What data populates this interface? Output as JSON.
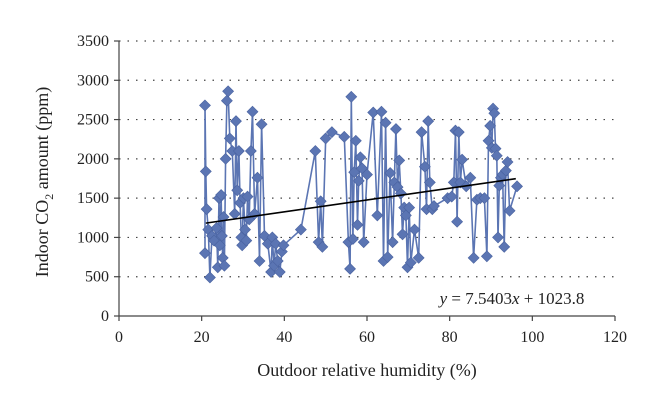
{
  "chart_data": {
    "type": "scatter",
    "title": "",
    "xlabel": "Outdoor relative humidity (%)",
    "ylabel_parts": [
      "Indoor CO",
      "2",
      " amount (ppm)"
    ],
    "xlim": [
      0,
      120
    ],
    "ylim": [
      0,
      3500
    ],
    "x_ticks": [
      0,
      20,
      40,
      60,
      80,
      100,
      120
    ],
    "y_ticks": [
      0,
      500,
      1000,
      1500,
      2000,
      2500,
      3000,
      3500
    ],
    "grid": "horizontal dotted",
    "series": [
      {
        "color": "#5b75b3",
        "marker": "diamond",
        "connected": true,
        "points": [
          [
            20.8,
            800
          ],
          [
            20.8,
            2680
          ],
          [
            21.0,
            1840
          ],
          [
            21.2,
            1360
          ],
          [
            21.6,
            1100
          ],
          [
            22.0,
            490
          ],
          [
            22.5,
            1020
          ],
          [
            23.0,
            960
          ],
          [
            23.6,
            1120
          ],
          [
            23.9,
            620
          ],
          [
            24.2,
            1500
          ],
          [
            24.4,
            900
          ],
          [
            24.7,
            1540
          ],
          [
            24.9,
            1020
          ],
          [
            25.1,
            740
          ],
          [
            25.3,
            1260
          ],
          [
            25.5,
            640
          ],
          [
            25.8,
            2000
          ],
          [
            26.1,
            2740
          ],
          [
            26.4,
            2860
          ],
          [
            26.8,
            2260
          ],
          [
            27.4,
            2100
          ],
          [
            28.0,
            1300
          ],
          [
            28.3,
            2480
          ],
          [
            28.6,
            1600
          ],
          [
            29.0,
            2100
          ],
          [
            29.3,
            1440
          ],
          [
            29.6,
            1000
          ],
          [
            29.8,
            900
          ],
          [
            30.1,
            1500
          ],
          [
            30.5,
            1100
          ],
          [
            30.8,
            960
          ],
          [
            31.1,
            1520
          ],
          [
            31.5,
            1230
          ],
          [
            31.9,
            2100
          ],
          [
            32.3,
            2600
          ],
          [
            32.8,
            1300
          ],
          [
            33.5,
            1760
          ],
          [
            34.0,
            700
          ],
          [
            34.5,
            2440
          ],
          [
            35.2,
            1020
          ],
          [
            36.0,
            920
          ],
          [
            36.8,
            560
          ],
          [
            37.1,
            1000
          ],
          [
            37.5,
            640
          ],
          [
            37.9,
            920
          ],
          [
            38.4,
            700
          ],
          [
            38.9,
            560
          ],
          [
            39.4,
            820
          ],
          [
            39.8,
            900
          ],
          [
            44.0,
            1100
          ],
          [
            47.5,
            2100
          ],
          [
            48.3,
            940
          ],
          [
            48.8,
            1460
          ],
          [
            49.2,
            880
          ],
          [
            50.0,
            2260
          ],
          [
            51.5,
            2340
          ],
          [
            54.5,
            2280
          ],
          [
            55.5,
            940
          ],
          [
            55.9,
            600
          ],
          [
            56.2,
            2790
          ],
          [
            56.6,
            980
          ],
          [
            56.9,
            1830
          ],
          [
            57.3,
            2230
          ],
          [
            57.7,
            1160
          ],
          [
            58.0,
            1720
          ],
          [
            58.4,
            2020
          ],
          [
            58.8,
            1880
          ],
          [
            59.2,
            940
          ],
          [
            60.0,
            1800
          ],
          [
            61.5,
            2590
          ],
          [
            62.5,
            1280
          ],
          [
            63.5,
            2600
          ],
          [
            64.0,
            700
          ],
          [
            64.5,
            2460
          ],
          [
            65.0,
            750
          ],
          [
            65.6,
            1820
          ],
          [
            66.2,
            940
          ],
          [
            66.6,
            1700
          ],
          [
            67.0,
            2380
          ],
          [
            67.4,
            1640
          ],
          [
            67.8,
            1980
          ],
          [
            68.2,
            1560
          ],
          [
            68.6,
            1040
          ],
          [
            69.0,
            1380
          ],
          [
            69.4,
            1280
          ],
          [
            69.8,
            620
          ],
          [
            70.2,
            1380
          ],
          [
            70.6,
            680
          ],
          [
            71.5,
            1100
          ],
          [
            72.5,
            740
          ],
          [
            73.2,
            2340
          ],
          [
            74.0,
            1900
          ],
          [
            74.4,
            1360
          ],
          [
            74.8,
            2480
          ],
          [
            75.2,
            1700
          ],
          [
            75.8,
            1360
          ],
          [
            76.2,
            1400
          ],
          [
            79.5,
            1500
          ],
          [
            80.5,
            1520
          ],
          [
            81.0,
            1700
          ],
          [
            81.4,
            2360
          ],
          [
            81.8,
            1200
          ],
          [
            82.2,
            2340
          ],
          [
            82.6,
            1700
          ],
          [
            83.0,
            1990
          ],
          [
            84.0,
            1650
          ],
          [
            85.0,
            1760
          ],
          [
            85.8,
            740
          ],
          [
            86.6,
            1480
          ],
          [
            87.4,
            1500
          ],
          [
            88.4,
            1500
          ],
          [
            89.0,
            760
          ],
          [
            89.4,
            2230
          ],
          [
            89.8,
            2420
          ],
          [
            90.2,
            2140
          ],
          [
            90.5,
            2640
          ],
          [
            90.8,
            2580
          ],
          [
            91.1,
            2130
          ],
          [
            91.4,
            2040
          ],
          [
            91.7,
            1000
          ],
          [
            92.0,
            1660
          ],
          [
            92.4,
            1760
          ],
          [
            92.8,
            1800
          ],
          [
            93.2,
            880
          ],
          [
            93.6,
            1850
          ],
          [
            94.0,
            1960
          ],
          [
            94.5,
            1340
          ],
          [
            96.3,
            1650
          ]
        ]
      }
    ],
    "trendline": {
      "x_range": [
        21,
        96
      ],
      "slope": 7.5403,
      "intercept": 1023.8,
      "color": "#000000",
      "equation_label": "y = 7.5403x + 1023.8"
    }
  }
}
